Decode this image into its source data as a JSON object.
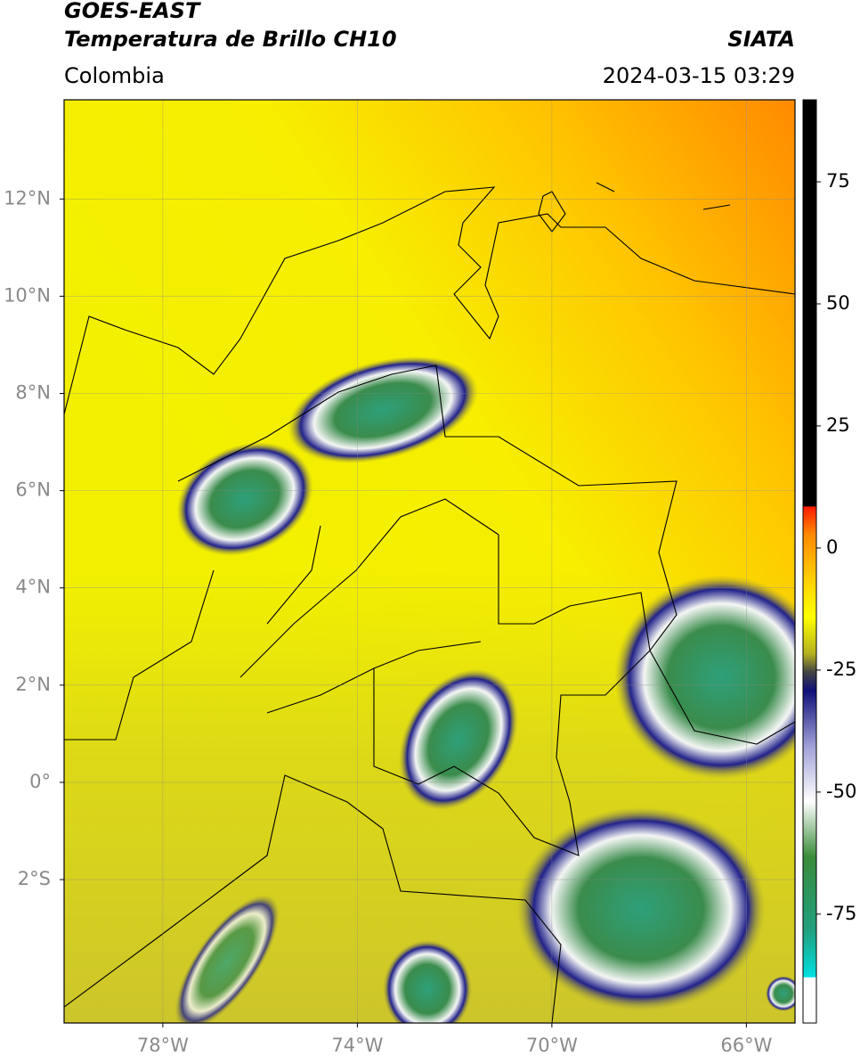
{
  "header": {
    "title": "GOES-EAST",
    "subtitle": "Temperatura de Brillo CH10",
    "region": "Colombia",
    "source": "SIATA",
    "datetime": "2024-03-15 03:29"
  },
  "map": {
    "lonlim": [
      -80.03,
      -65.0
    ],
    "latlim": [
      -4.95,
      14.04
    ],
    "lon_ticks": [
      {
        "value": -78,
        "label": "78°W"
      },
      {
        "value": -74,
        "label": "74°W"
      },
      {
        "value": -70,
        "label": "70°W"
      },
      {
        "value": -66,
        "label": "66°W"
      }
    ],
    "lat_ticks": [
      {
        "value": 12,
        "label": "12°N"
      },
      {
        "value": 10,
        "label": "10°N"
      },
      {
        "value": 8,
        "label": "8°N"
      },
      {
        "value": 6,
        "label": "6°N"
      },
      {
        "value": 4,
        "label": "4°N"
      },
      {
        "value": 2,
        "label": "2°N"
      },
      {
        "value": 0,
        "label": "0°"
      },
      {
        "value": -2,
        "label": "2°S"
      }
    ],
    "grid": true
  },
  "colorbar": {
    "lim": [
      -97.3,
      91.8
    ],
    "ticks": [
      75,
      50,
      25,
      0,
      -25,
      -50,
      -75
    ]
  }
}
